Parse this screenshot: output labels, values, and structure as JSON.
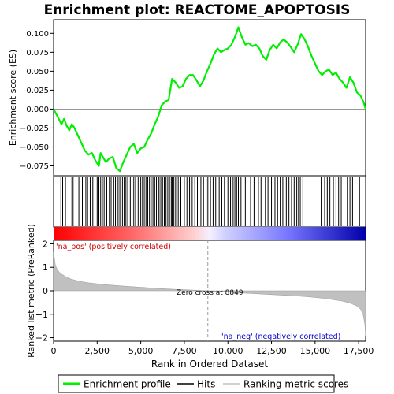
{
  "chart_data": {
    "type": "line",
    "title": "Enrichment plot: REACTOME_APOPTOSIS",
    "top_panel": {
      "ylabel": "Enrichment score (ES)",
      "ylim": [
        -0.088,
        0.118
      ],
      "yticks": [
        -0.075,
        -0.05,
        -0.025,
        0.0,
        0.025,
        0.05,
        0.075,
        0.1
      ],
      "ytick_labels": [
        "−0.075",
        "−0.050",
        "−0.025",
        "0.000",
        "0.025",
        "0.050",
        "0.075",
        "0.100"
      ],
      "series": [
        {
          "name": "Enrichment profile",
          "color": "#00ee00",
          "x": [
            0,
            300,
            450,
            600,
            750,
            900,
            1050,
            1200,
            1400,
            1600,
            1800,
            2000,
            2200,
            2400,
            2600,
            2700,
            2800,
            3000,
            3200,
            3400,
            3600,
            3800,
            4000,
            4200,
            4400,
            4600,
            4800,
            5000,
            5200,
            5400,
            5600,
            5800,
            6000,
            6200,
            6400,
            6600,
            6800,
            7000,
            7200,
            7400,
            7600,
            7800,
            8000,
            8200,
            8400,
            8600,
            8800,
            9000,
            9200,
            9400,
            9600,
            9800,
            10000,
            10200,
            10400,
            10600,
            10800,
            11000,
            11200,
            11400,
            11600,
            11800,
            12000,
            12200,
            12400,
            12600,
            12800,
            13000,
            13200,
            13400,
            13600,
            13800,
            14000,
            14200,
            14400,
            14600,
            14800,
            15000,
            15200,
            15400,
            15600,
            15800,
            16000,
            16200,
            16400,
            16600,
            16800,
            17000,
            17200,
            17400,
            17600,
            17800,
            17900
          ],
          "y": [
            0.0,
            -0.013,
            -0.02,
            -0.013,
            -0.022,
            -0.028,
            -0.02,
            -0.025,
            -0.035,
            -0.045,
            -0.055,
            -0.06,
            -0.058,
            -0.068,
            -0.075,
            -0.058,
            -0.062,
            -0.07,
            -0.065,
            -0.063,
            -0.078,
            -0.082,
            -0.07,
            -0.06,
            -0.05,
            -0.046,
            -0.058,
            -0.052,
            -0.05,
            -0.04,
            -0.032,
            -0.02,
            -0.01,
            0.005,
            0.01,
            0.012,
            0.04,
            0.035,
            0.028,
            0.03,
            0.04,
            0.045,
            0.045,
            0.038,
            0.03,
            0.038,
            0.05,
            0.06,
            0.072,
            0.08,
            0.075,
            0.078,
            0.08,
            0.085,
            0.095,
            0.108,
            0.095,
            0.085,
            0.087,
            0.083,
            0.085,
            0.08,
            0.07,
            0.065,
            0.078,
            0.085,
            0.08,
            0.088,
            0.092,
            0.088,
            0.082,
            0.075,
            0.085,
            0.099,
            0.092,
            0.082,
            0.07,
            0.06,
            0.05,
            0.045,
            0.05,
            0.052,
            0.045,
            0.048,
            0.04,
            0.035,
            0.028,
            0.042,
            0.035,
            0.022,
            0.018,
            0.008,
            0.0
          ]
        }
      ]
    },
    "hits_panel": {
      "legend_label": "Hits",
      "hit_positions": [
        420,
        520,
        680,
        1050,
        1120,
        1450,
        1650,
        1850,
        1950,
        2100,
        2250,
        2500,
        2600,
        2700,
        2800,
        2900,
        3050,
        3200,
        3300,
        3450,
        3550,
        3700,
        3800,
        3950,
        4050,
        4150,
        4250,
        4400,
        4500,
        4600,
        4700,
        4850,
        5000,
        5100,
        5200,
        5300,
        5400,
        5500,
        5600,
        5700,
        5800,
        5900,
        6000,
        6050,
        6150,
        6250,
        6350,
        6450,
        6550,
        6650,
        6750,
        6800,
        6900,
        7000,
        7150,
        7300,
        7500,
        7650,
        7800,
        7950,
        8100,
        8250,
        8450,
        8600,
        8750,
        8850,
        9000,
        9150,
        9300,
        9500,
        9650,
        9800,
        10000,
        10150,
        10300,
        10400,
        10500,
        10600,
        10750,
        11000,
        11300,
        11500,
        11750,
        11900,
        12150,
        12300,
        12500,
        12700,
        12850,
        13000,
        13150,
        13350,
        13500,
        13650,
        13800,
        13950,
        14050,
        14150,
        14300,
        15350,
        15550,
        15700,
        15850,
        16050,
        16200,
        16350,
        16500,
        16850,
        17000,
        17150,
        17550
      ]
    },
    "colorbar": {
      "pos_color": "#ff0000",
      "neg_color": "#0000ff",
      "pos_label": "'na_pos' (positively correlated)",
      "neg_label": "'na_neg' (negatively correlated)"
    },
    "bottom_panel": {
      "ylabel": "Ranked list metric (PreRanked)",
      "ylim": [
        -2.15,
        2.15
      ],
      "yticks": [
        -2,
        -1,
        0,
        1,
        2
      ],
      "ytick_labels": [
        "−2",
        "−1",
        "0",
        "1",
        "2"
      ],
      "zero_cross_label": "Zero cross at 8849",
      "zero_cross": 8849,
      "series": [
        {
          "name": "Ranking metric scores",
          "color": "#c0c0c0",
          "x": [
            0,
            100,
            200,
            400,
            700,
            1000,
            1500,
            2000,
            2500,
            3000,
            4000,
            5000,
            6000,
            7000,
            8000,
            8849,
            9500,
            10500,
            11500,
            12500,
            13500,
            14500,
            15500,
            16500,
            17000,
            17400,
            17600,
            17750,
            17850,
            17900
          ],
          "y": [
            1.65,
            1.1,
            0.92,
            0.74,
            0.6,
            0.5,
            0.4,
            0.34,
            0.3,
            0.26,
            0.2,
            0.15,
            0.1,
            0.06,
            0.03,
            0.0,
            -0.04,
            -0.08,
            -0.12,
            -0.16,
            -0.2,
            -0.25,
            -0.32,
            -0.43,
            -0.52,
            -0.65,
            -0.78,
            -1.0,
            -1.4,
            -1.92
          ]
        }
      ]
    },
    "xlabel": "Rank in Ordered Dataset",
    "xlim": [
      0,
      17900
    ],
    "xticks": [
      0,
      2500,
      5000,
      7500,
      10000,
      12500,
      15000,
      17500
    ],
    "xtick_labels": [
      "0",
      "2,500",
      "5,000",
      "7,500",
      "10,000",
      "12,500",
      "15,000",
      "17,500"
    ],
    "legend": {
      "placement": "bottom",
      "entries": [
        {
          "label": "Enrichment profile",
          "color": "#00ee00",
          "style": "thick-line"
        },
        {
          "label": "Hits",
          "color": "#000000",
          "style": "line"
        },
        {
          "label": "Ranking metric scores",
          "color": "#c0c0c0",
          "style": "line"
        }
      ]
    }
  }
}
